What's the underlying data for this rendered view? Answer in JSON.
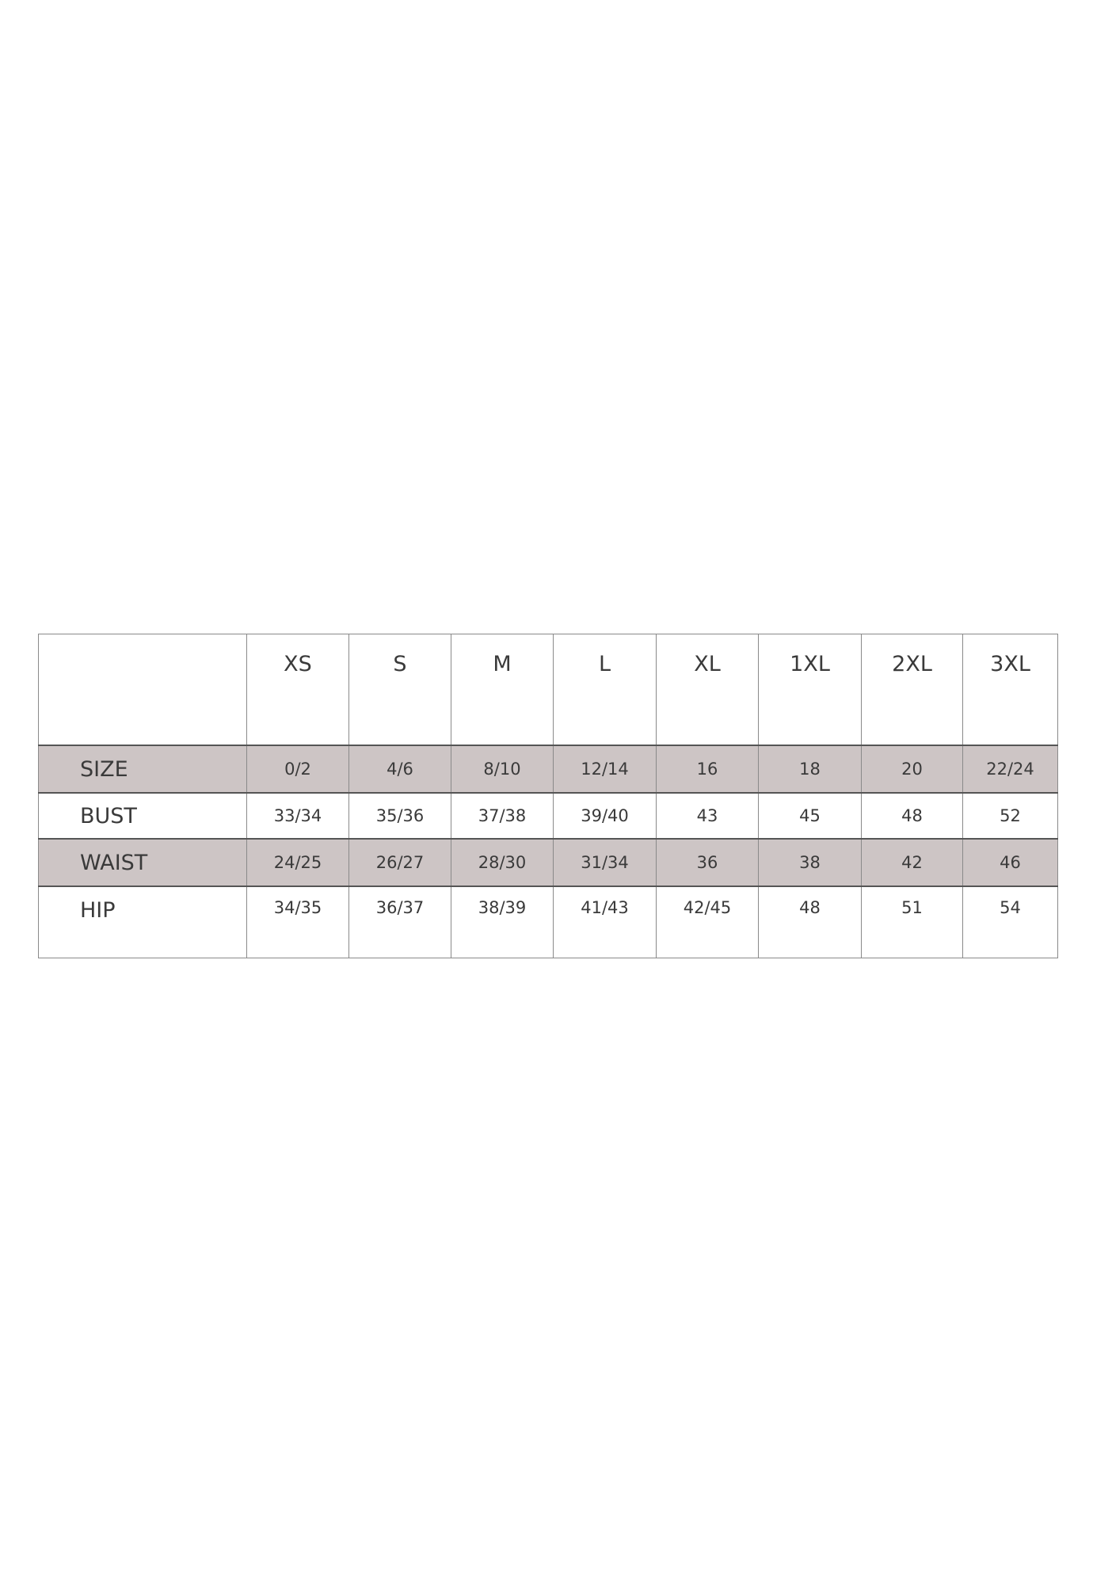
{
  "size_chart": {
    "columns": [
      "XS",
      "S",
      "M",
      "L",
      "XL",
      "1XL",
      "2XL",
      "3XL"
    ],
    "rows": [
      {
        "label": "SIZE",
        "values": [
          "0/2",
          "4/6",
          "8/10",
          "12/14",
          "16",
          "18",
          "20",
          "22/24"
        ],
        "shaded": true
      },
      {
        "label": "BUST",
        "values": [
          "33/34",
          "35/36",
          "37/38",
          "39/40",
          "43",
          "45",
          "48",
          "52"
        ],
        "shaded": false
      },
      {
        "label": "WAIST",
        "values": [
          "24/25",
          "26/27",
          "28/30",
          "31/34",
          "36",
          "38",
          "42",
          "46"
        ],
        "shaded": true
      },
      {
        "label": "HIP",
        "values": [
          "34/35",
          "36/37",
          "38/39",
          "41/43",
          "42/45",
          "48",
          "51",
          "54"
        ],
        "shaded": false
      }
    ],
    "shade_color": "#cdc5c5"
  }
}
